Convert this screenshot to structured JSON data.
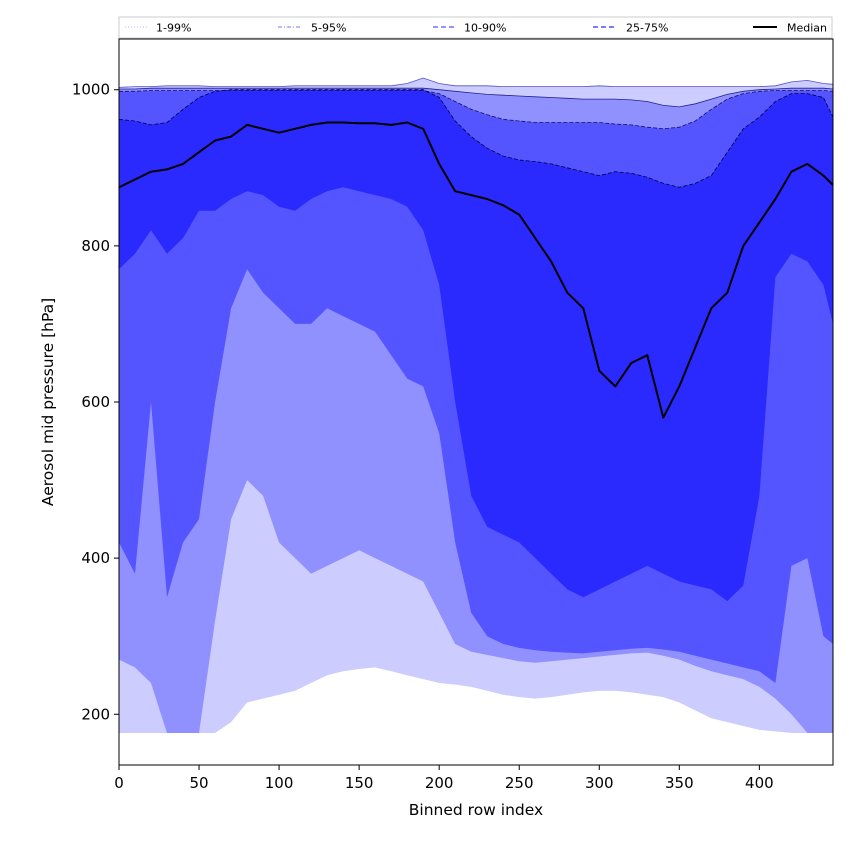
{
  "chart_data": {
    "type": "area",
    "xlabel": "Binned row index",
    "ylabel": "Aerosol mid pressure [hPa]",
    "xlim": [
      0,
      446
    ],
    "ylim": [
      135,
      1065
    ],
    "x_ticks": [
      0,
      50,
      100,
      150,
      200,
      250,
      300,
      350,
      400
    ],
    "y_ticks": [
      200,
      400,
      600,
      800,
      1000
    ],
    "grid": false,
    "legend_placement": "top, spanning full width",
    "legend": [
      {
        "label": "1-99%",
        "style": "dotted",
        "color": "#ccccff"
      },
      {
        "label": "5-95%",
        "style": "dashdot",
        "color": "#9090ff"
      },
      {
        "label": "10-90%",
        "style": "dashed",
        "color": "#5555ff"
      },
      {
        "label": "25-75%",
        "style": "dashed",
        "color": "#2a2aff"
      },
      {
        "label": "Median",
        "style": "solid",
        "color": "#000000"
      }
    ],
    "x": [
      0,
      10,
      20,
      30,
      40,
      50,
      60,
      70,
      80,
      90,
      100,
      110,
      120,
      130,
      140,
      150,
      160,
      170,
      180,
      190,
      200,
      210,
      220,
      230,
      240,
      250,
      260,
      270,
      280,
      290,
      300,
      310,
      320,
      330,
      340,
      350,
      360,
      370,
      380,
      390,
      400,
      410,
      420,
      430,
      440,
      446
    ],
    "bands": [
      {
        "name": "1-99%",
        "color": "#ccccff",
        "lower": [
          176,
          176,
          176,
          176,
          176,
          176,
          176,
          190,
          215,
          220,
          225,
          230,
          240,
          250,
          255,
          258,
          260,
          255,
          250,
          245,
          240,
          238,
          235,
          230,
          225,
          222,
          220,
          222,
          225,
          228,
          230,
          230,
          228,
          225,
          222,
          215,
          205,
          195,
          190,
          185,
          180,
          178,
          176,
          176,
          176,
          176
        ],
        "upper": [
          1003,
          1004,
          1004,
          1005,
          1005,
          1005,
          1004,
          1004,
          1004,
          1004,
          1004,
          1005,
          1005,
          1005,
          1005,
          1005,
          1005,
          1005,
          1008,
          1015,
          1008,
          1005,
          1005,
          1005,
          1004,
          1004,
          1004,
          1004,
          1004,
          1004,
          1005,
          1004,
          1004,
          1004,
          1004,
          1004,
          1004,
          1004,
          1004,
          1004,
          1004,
          1005,
          1010,
          1012,
          1008,
          1007
        ]
      },
      {
        "name": "5-95%",
        "color": "#9090ff",
        "lower": [
          270,
          260,
          240,
          176,
          176,
          176,
          320,
          450,
          500,
          480,
          420,
          400,
          380,
          390,
          400,
          410,
          400,
          390,
          380,
          370,
          330,
          290,
          280,
          276,
          272,
          268,
          266,
          268,
          270,
          272,
          274,
          276,
          278,
          279,
          275,
          270,
          262,
          255,
          250,
          245,
          235,
          220,
          200,
          176,
          176,
          176
        ],
        "upper": [
          1001,
          1001,
          1002,
          1002,
          1002,
          1002,
          1002,
          1002,
          1002,
          1002,
          1002,
          1002,
          1002,
          1002,
          1002,
          1002,
          1002,
          1002,
          1002,
          1002,
          1000,
          998,
          996,
          994,
          993,
          992,
          991,
          990,
          989,
          988,
          988,
          988,
          987,
          985,
          980,
          978,
          982,
          988,
          994,
          998,
          1000,
          1001,
          1002,
          1002,
          1002,
          1001
        ]
      },
      {
        "name": "10-90%",
        "color": "#5555ff",
        "lower": [
          420,
          380,
          600,
          350,
          420,
          450,
          600,
          720,
          770,
          740,
          720,
          700,
          700,
          720,
          710,
          700,
          690,
          660,
          630,
          620,
          560,
          420,
          330,
          300,
          290,
          285,
          282,
          280,
          279,
          278,
          280,
          282,
          284,
          285,
          283,
          280,
          275,
          270,
          265,
          260,
          255,
          240,
          390,
          400,
          300,
          290
        ],
        "upper": [
          998,
          998,
          999,
          999,
          999,
          999,
          999,
          999,
          999,
          999,
          999,
          999,
          999,
          999,
          999,
          999,
          999,
          999,
          999,
          999,
          995,
          985,
          975,
          968,
          962,
          960,
          958,
          958,
          958,
          958,
          958,
          956,
          955,
          952,
          950,
          952,
          960,
          975,
          988,
          995,
          998,
          999,
          999,
          999,
          999,
          998
        ]
      },
      {
        "name": "25-75%",
        "color": "#2a2aff",
        "lower": [
          770,
          790,
          820,
          790,
          810,
          845,
          845,
          860,
          870,
          865,
          850,
          845,
          860,
          870,
          875,
          870,
          865,
          860,
          850,
          820,
          750,
          600,
          480,
          440,
          430,
          420,
          400,
          380,
          360,
          350,
          360,
          370,
          380,
          390,
          380,
          370,
          365,
          360,
          345,
          365,
          480,
          760,
          790,
          780,
          750,
          700
        ],
        "upper": [
          962,
          960,
          955,
          958,
          975,
          990,
          998,
          1000,
          1000,
          1000,
          1000,
          1000,
          1000,
          1000,
          1000,
          1000,
          1000,
          1000,
          1000,
          1000,
          990,
          960,
          940,
          925,
          915,
          910,
          908,
          905,
          900,
          895,
          890,
          895,
          893,
          888,
          880,
          875,
          880,
          890,
          920,
          950,
          965,
          985,
          995,
          995,
          990,
          965
        ]
      }
    ],
    "series": [
      {
        "name": "Median",
        "color": "#000000",
        "values": [
          875,
          885,
          895,
          898,
          905,
          920,
          935,
          940,
          955,
          950,
          945,
          950,
          955,
          958,
          958,
          957,
          957,
          955,
          958,
          950,
          905,
          870,
          865,
          860,
          852,
          840,
          810,
          780,
          740,
          720,
          640,
          620,
          650,
          660,
          580,
          620,
          670,
          720,
          740,
          800,
          830,
          860,
          895,
          905,
          890,
          878
        ]
      }
    ]
  }
}
